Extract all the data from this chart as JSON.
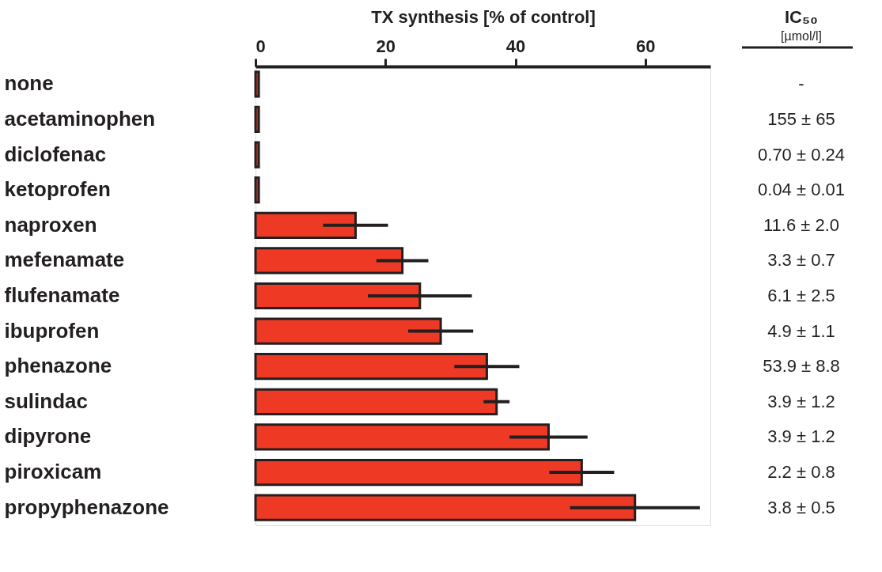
{
  "chart_data": {
    "type": "bar",
    "orientation": "horizontal",
    "xlabel": "TX synthesis [% of control]",
    "categories": [
      "none",
      "acetaminophen",
      "diclofenac",
      "ketoprofen",
      "naproxen",
      "mefenamate",
      "flufenamate",
      "ibuprofen",
      "phenazone",
      "sulindac",
      "dipyrone",
      "piroxicam",
      "propyphenazone"
    ],
    "values": [
      0.5,
      0.5,
      0.5,
      0.5,
      15.4,
      22.6,
      25.3,
      28.5,
      35.6,
      37.1,
      45.1,
      50.2,
      58.4
    ],
    "errors": [
      null,
      null,
      null,
      null,
      5,
      4,
      8,
      5,
      5,
      2,
      6,
      5,
      10
    ],
    "color": "#ee3a24",
    "xlim": [
      0,
      70
    ],
    "xticks": [
      0,
      20,
      40,
      60
    ],
    "grid": false,
    "annotations": [
      "IC₅₀",
      "[µmol/l]",
      "-",
      "155 ± 65",
      "0.70 ± 0.24",
      "0.04 ± 0.01",
      "11.6 ± 2.0",
      "3.3 ± 0.7",
      "6.1 ± 2.5",
      "4.9 ± 1.1",
      "53.9 ± 8.8",
      "3.9 ± 1.2",
      "3.9 ± 1.2",
      "2.2 ± 0.8",
      "3.8 ± 0.5"
    ]
  }
}
